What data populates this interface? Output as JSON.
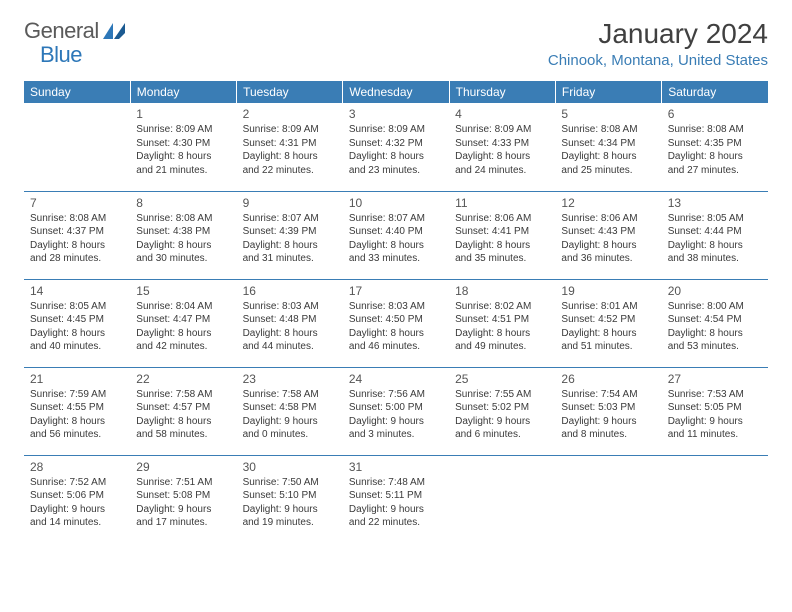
{
  "brand": {
    "name_part1": "General",
    "name_part2": "Blue",
    "icon_color": "#2d77b8"
  },
  "header": {
    "month_year": "January 2024",
    "location": "Chinook, Montana, United States"
  },
  "colors": {
    "header_bg": "#3a7db5",
    "header_text": "#ffffff",
    "row_border": "#3a7db5",
    "body_text": "#3a3a3a",
    "daynum_text": "#555555",
    "location_text": "#3a7db5",
    "title_text": "#404040",
    "background": "#ffffff"
  },
  "calendar": {
    "columns": [
      "Sunday",
      "Monday",
      "Tuesday",
      "Wednesday",
      "Thursday",
      "Friday",
      "Saturday"
    ],
    "days": {
      "1": {
        "sunrise": "8:09 AM",
        "sunset": "4:30 PM",
        "daylight": "8 hours and 21 minutes."
      },
      "2": {
        "sunrise": "8:09 AM",
        "sunset": "4:31 PM",
        "daylight": "8 hours and 22 minutes."
      },
      "3": {
        "sunrise": "8:09 AM",
        "sunset": "4:32 PM",
        "daylight": "8 hours and 23 minutes."
      },
      "4": {
        "sunrise": "8:09 AM",
        "sunset": "4:33 PM",
        "daylight": "8 hours and 24 minutes."
      },
      "5": {
        "sunrise": "8:08 AM",
        "sunset": "4:34 PM",
        "daylight": "8 hours and 25 minutes."
      },
      "6": {
        "sunrise": "8:08 AM",
        "sunset": "4:35 PM",
        "daylight": "8 hours and 27 minutes."
      },
      "7": {
        "sunrise": "8:08 AM",
        "sunset": "4:37 PM",
        "daylight": "8 hours and 28 minutes."
      },
      "8": {
        "sunrise": "8:08 AM",
        "sunset": "4:38 PM",
        "daylight": "8 hours and 30 minutes."
      },
      "9": {
        "sunrise": "8:07 AM",
        "sunset": "4:39 PM",
        "daylight": "8 hours and 31 minutes."
      },
      "10": {
        "sunrise": "8:07 AM",
        "sunset": "4:40 PM",
        "daylight": "8 hours and 33 minutes."
      },
      "11": {
        "sunrise": "8:06 AM",
        "sunset": "4:41 PM",
        "daylight": "8 hours and 35 minutes."
      },
      "12": {
        "sunrise": "8:06 AM",
        "sunset": "4:43 PM",
        "daylight": "8 hours and 36 minutes."
      },
      "13": {
        "sunrise": "8:05 AM",
        "sunset": "4:44 PM",
        "daylight": "8 hours and 38 minutes."
      },
      "14": {
        "sunrise": "8:05 AM",
        "sunset": "4:45 PM",
        "daylight": "8 hours and 40 minutes."
      },
      "15": {
        "sunrise": "8:04 AM",
        "sunset": "4:47 PM",
        "daylight": "8 hours and 42 minutes."
      },
      "16": {
        "sunrise": "8:03 AM",
        "sunset": "4:48 PM",
        "daylight": "8 hours and 44 minutes."
      },
      "17": {
        "sunrise": "8:03 AM",
        "sunset": "4:50 PM",
        "daylight": "8 hours and 46 minutes."
      },
      "18": {
        "sunrise": "8:02 AM",
        "sunset": "4:51 PM",
        "daylight": "8 hours and 49 minutes."
      },
      "19": {
        "sunrise": "8:01 AM",
        "sunset": "4:52 PM",
        "daylight": "8 hours and 51 minutes."
      },
      "20": {
        "sunrise": "8:00 AM",
        "sunset": "4:54 PM",
        "daylight": "8 hours and 53 minutes."
      },
      "21": {
        "sunrise": "7:59 AM",
        "sunset": "4:55 PM",
        "daylight": "8 hours and 56 minutes."
      },
      "22": {
        "sunrise": "7:58 AM",
        "sunset": "4:57 PM",
        "daylight": "8 hours and 58 minutes."
      },
      "23": {
        "sunrise": "7:58 AM",
        "sunset": "4:58 PM",
        "daylight": "9 hours and 0 minutes."
      },
      "24": {
        "sunrise": "7:56 AM",
        "sunset": "5:00 PM",
        "daylight": "9 hours and 3 minutes."
      },
      "25": {
        "sunrise": "7:55 AM",
        "sunset": "5:02 PM",
        "daylight": "9 hours and 6 minutes."
      },
      "26": {
        "sunrise": "7:54 AM",
        "sunset": "5:03 PM",
        "daylight": "9 hours and 8 minutes."
      },
      "27": {
        "sunrise": "7:53 AM",
        "sunset": "5:05 PM",
        "daylight": "9 hours and 11 minutes."
      },
      "28": {
        "sunrise": "7:52 AM",
        "sunset": "5:06 PM",
        "daylight": "9 hours and 14 minutes."
      },
      "29": {
        "sunrise": "7:51 AM",
        "sunset": "5:08 PM",
        "daylight": "9 hours and 17 minutes."
      },
      "30": {
        "sunrise": "7:50 AM",
        "sunset": "5:10 PM",
        "daylight": "9 hours and 19 minutes."
      },
      "31": {
        "sunrise": "7:48 AM",
        "sunset": "5:11 PM",
        "daylight": "9 hours and 22 minutes."
      }
    },
    "grid": [
      [
        null,
        "1",
        "2",
        "3",
        "4",
        "5",
        "6"
      ],
      [
        "7",
        "8",
        "9",
        "10",
        "11",
        "12",
        "13"
      ],
      [
        "14",
        "15",
        "16",
        "17",
        "18",
        "19",
        "20"
      ],
      [
        "21",
        "22",
        "23",
        "24",
        "25",
        "26",
        "27"
      ],
      [
        "28",
        "29",
        "30",
        "31",
        null,
        null,
        null
      ]
    ],
    "labels": {
      "sunrise": "Sunrise:",
      "sunset": "Sunset:",
      "daylight": "Daylight:"
    }
  }
}
